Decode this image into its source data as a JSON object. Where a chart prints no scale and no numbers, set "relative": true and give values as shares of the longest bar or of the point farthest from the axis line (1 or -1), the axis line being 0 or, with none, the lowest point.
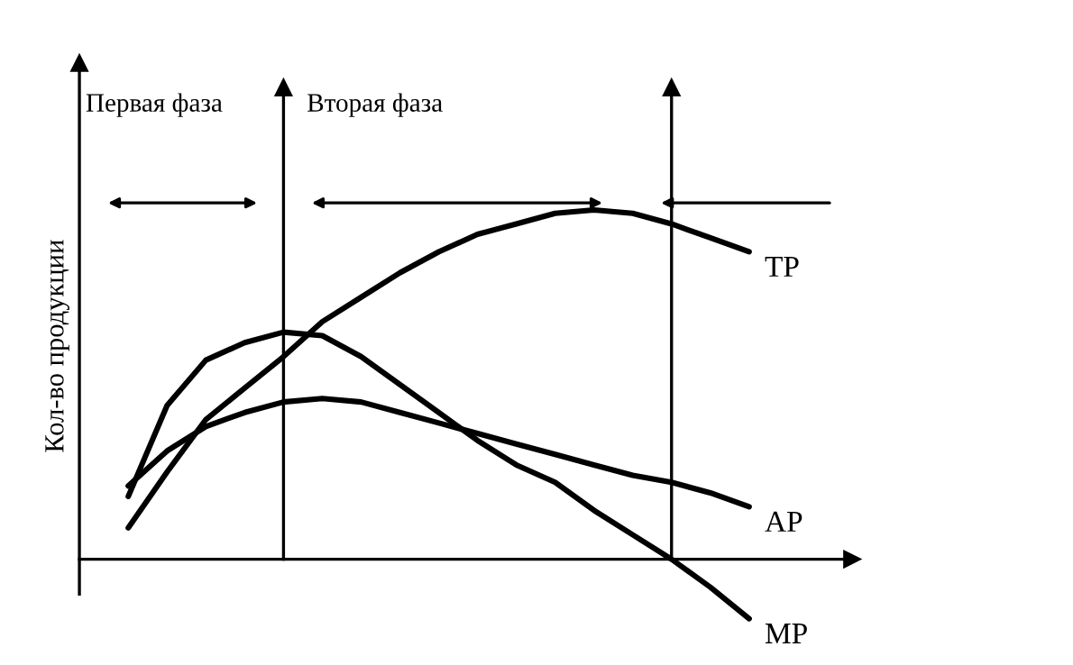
{
  "chart_data": {
    "type": "line",
    "ylabel": "Кол-во продукции",
    "relative": true,
    "categories": [
      null,
      null,
      null,
      null,
      null,
      null,
      null,
      null,
      null,
      null,
      null,
      null,
      null,
      null,
      null,
      null,
      null,
      null,
      null,
      null
    ],
    "series": [
      {
        "name": "TP",
        "color": "#000000",
        "values": [
          null,
          0.09,
          0.25,
          0.4,
          0.49,
          0.58,
          0.68,
          0.75,
          0.82,
          0.88,
          0.93,
          0.96,
          0.99,
          1.0,
          0.99,
          0.96,
          0.92,
          0.88,
          null,
          null
        ]
      },
      {
        "name": "AP",
        "color": "#000000",
        "values": [
          null,
          0.21,
          0.31,
          0.38,
          0.42,
          0.45,
          0.46,
          0.45,
          0.42,
          0.39,
          0.36,
          0.33,
          0.3,
          0.27,
          0.24,
          0.22,
          0.19,
          0.15,
          null,
          null
        ]
      },
      {
        "name": "MP",
        "color": "#000000",
        "values": [
          null,
          0.18,
          0.44,
          0.57,
          0.62,
          0.65,
          0.64,
          0.58,
          0.5,
          0.42,
          0.34,
          0.27,
          0.22,
          0.14,
          0.07,
          0.0,
          -0.08,
          -0.17,
          null,
          null
        ]
      }
    ],
    "annotations": [
      "Первая фаза",
      "Вторая фаза"
    ],
    "legend": false,
    "marker": "none",
    "line_style": "solid"
  }
}
